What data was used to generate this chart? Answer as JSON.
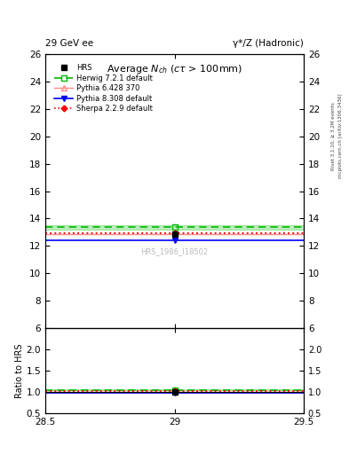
{
  "title_top_left": "29 GeV ee",
  "title_top_right": "γ*/Z (Hadronic)",
  "main_title": "Average N_{ch} (cτ > 100mm)",
  "watermark": "HRS_1986_I18502",
  "right_label_top": "Rivet 3.1.10, ≥ 3.2M events",
  "right_label_bot": "mcplots.cern.ch [arXiv:1306.3436]",
  "ylabel_ratio": "Ratio to HRS",
  "xlim": [
    28.5,
    29.5
  ],
  "ylim_main": [
    6,
    26
  ],
  "ylim_ratio": [
    0.5,
    2.5
  ],
  "yticks_main": [
    6,
    8,
    10,
    12,
    14,
    16,
    18,
    20,
    22,
    24,
    26
  ],
  "yticks_ratio": [
    0.5,
    1.0,
    1.5,
    2.0
  ],
  "xticks": [
    28.5,
    29.0,
    29.5
  ],
  "x_center": 29.0,
  "HRS_y": 12.83,
  "HRS_yerr": 0.15,
  "Herwig_y": 13.35,
  "Herwig_band_lo": 13.2,
  "Herwig_band_hi": 13.5,
  "Pythia6_y": 12.88,
  "Pythia8_y": 12.42,
  "Sherpa_y": 12.93,
  "HRS_color": "#000000",
  "Herwig_color": "#00bb00",
  "Pythia6_color": "#ff8888",
  "Pythia8_color": "#0000ff",
  "Sherpa_color": "#ff0000",
  "background_color": "#ffffff"
}
